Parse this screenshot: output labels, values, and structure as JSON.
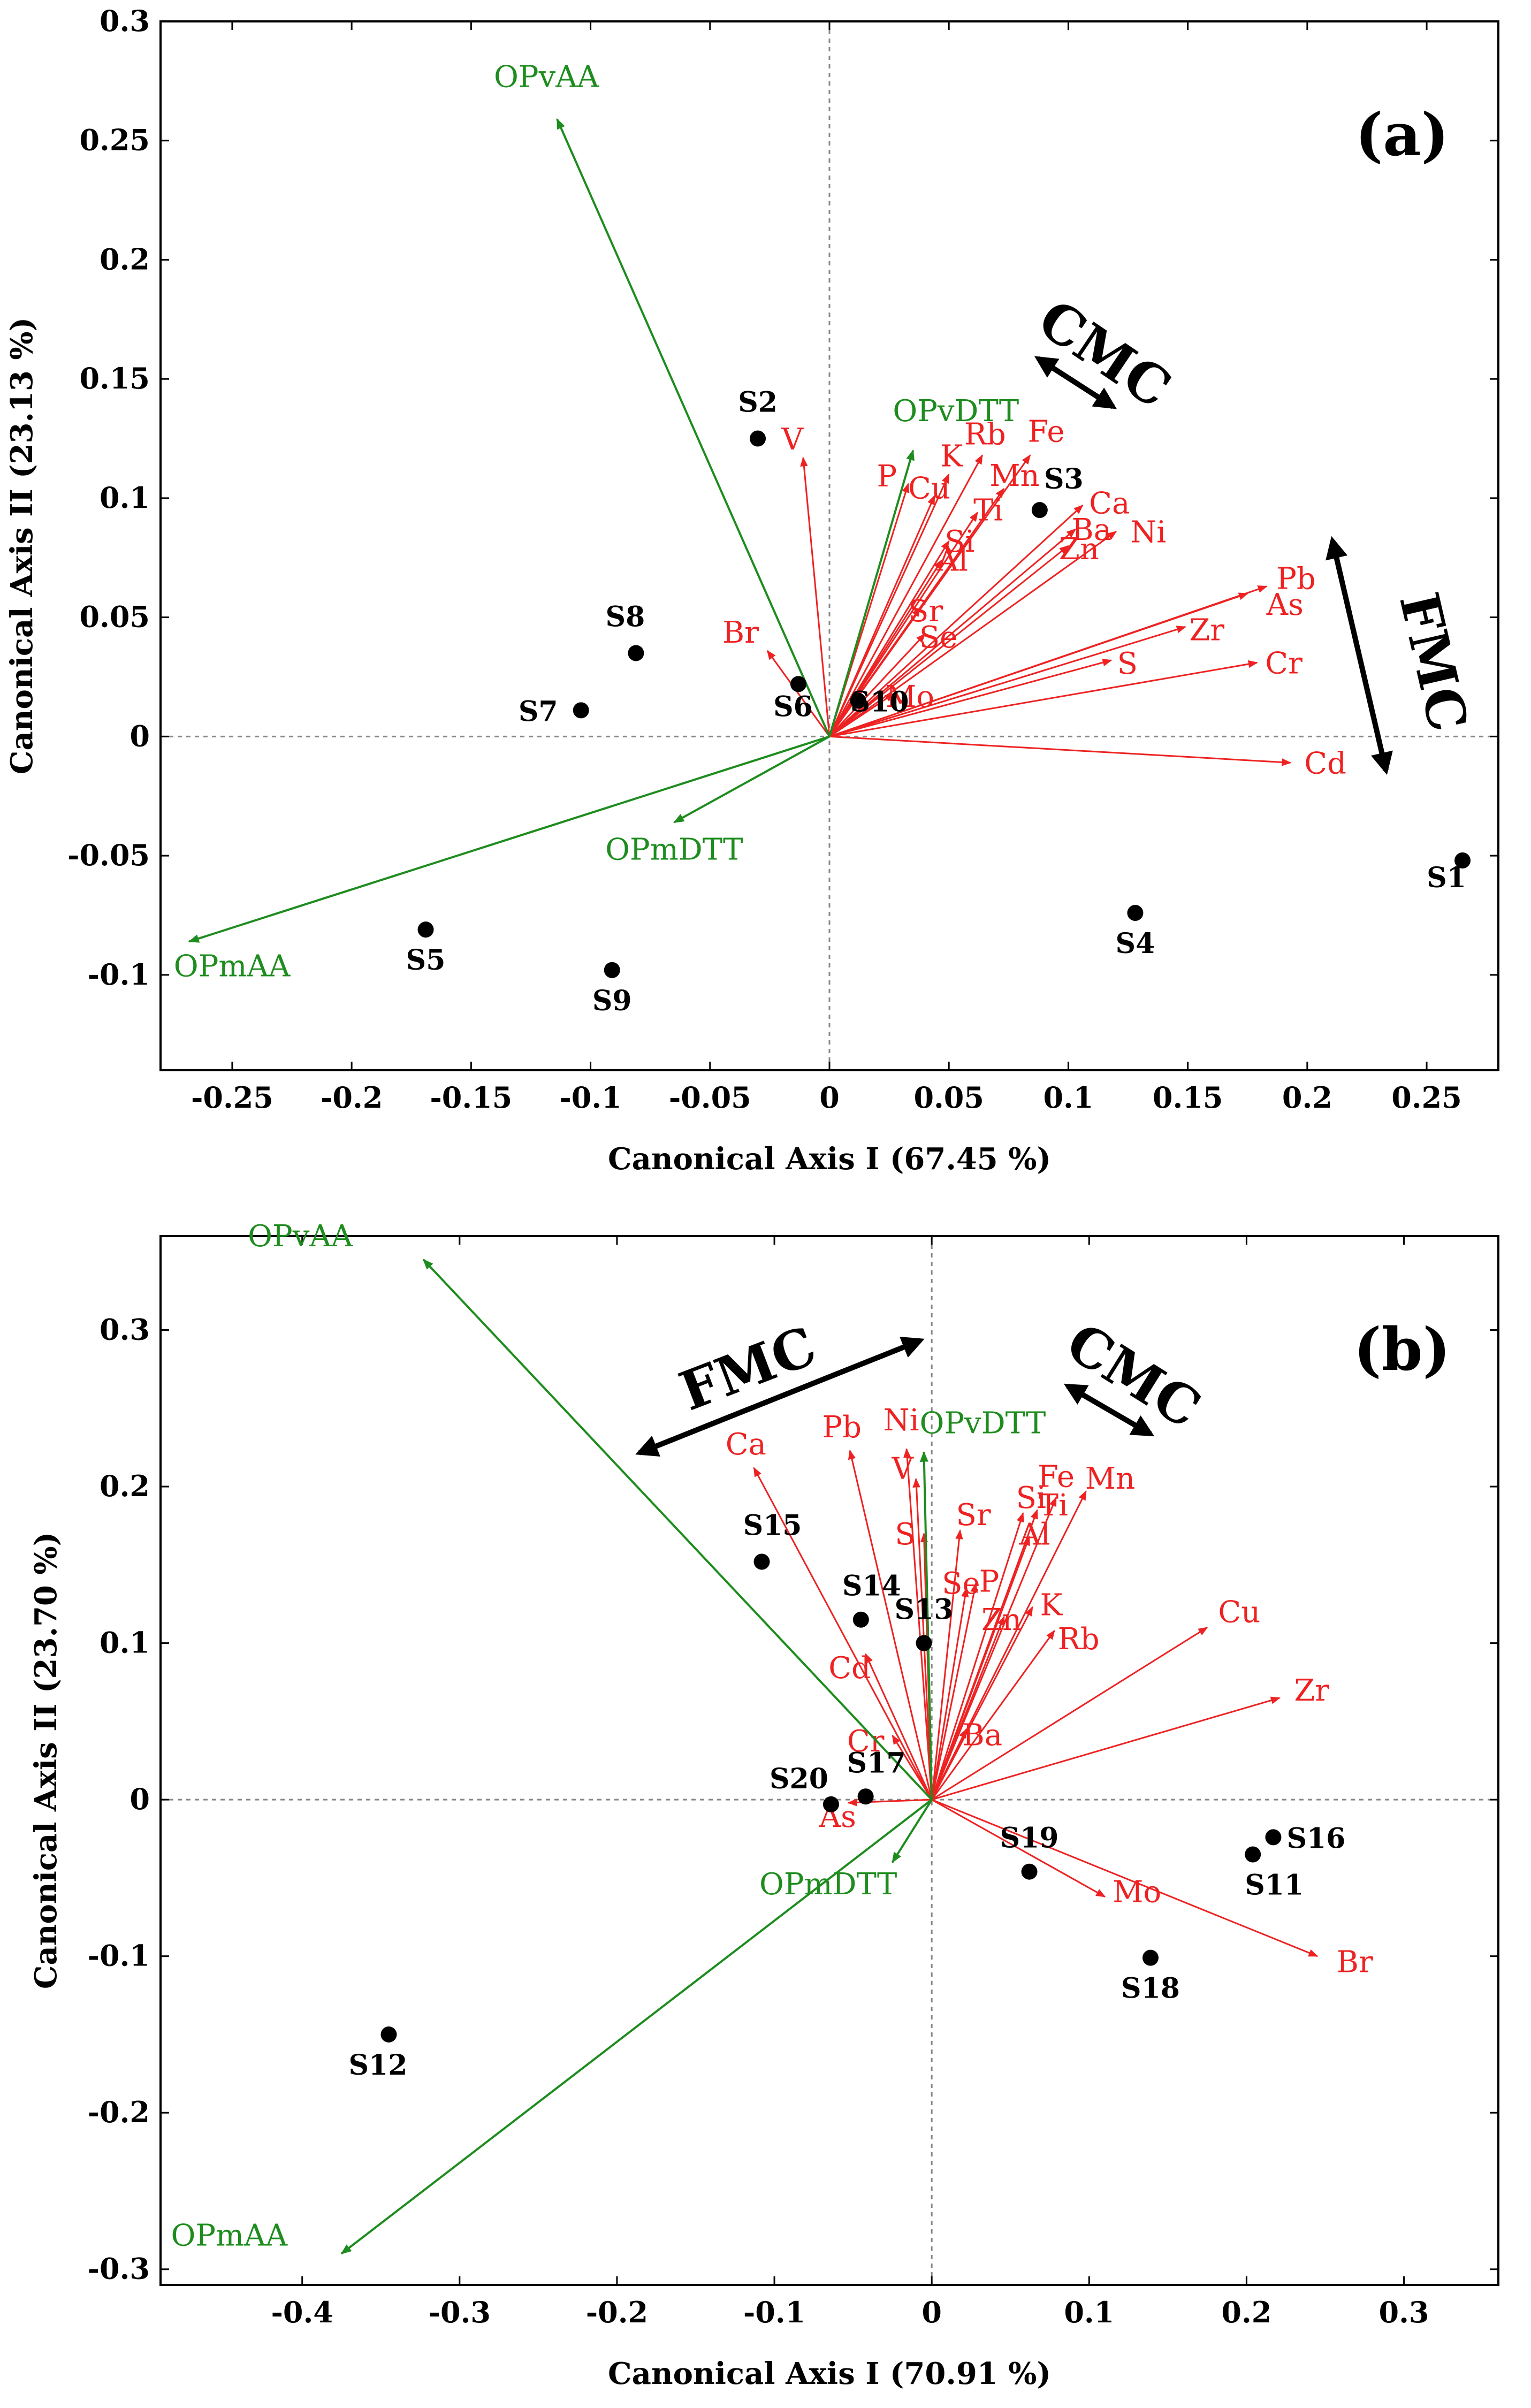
{
  "colors": {
    "element": "#ee2222",
    "op": "#1e8c1e",
    "point": "#000000",
    "annotation": "#000000"
  },
  "chart_data": [
    {
      "type": "scatter",
      "subtype": "canonical correspondence biplot",
      "panel_label": "(a)",
      "xlabel": "Canonical Axis I (67.45 %)",
      "ylabel": "Canonical Axis II (23.13 %)",
      "xlim": [
        -0.28,
        0.28
      ],
      "ylim": [
        -0.14,
        0.3
      ],
      "xticks": [
        "-0.25",
        "-0.2",
        "-0.15",
        "-0.1",
        "-0.05",
        "0",
        "0.05",
        "0.1",
        "0.15",
        "0.2",
        "0.25"
      ],
      "xtick_values": [
        -0.25,
        -0.2,
        -0.15,
        -0.1,
        -0.05,
        0,
        0.05,
        0.1,
        0.15,
        0.2,
        0.25
      ],
      "yticks": [
        "-0.1",
        "-0.05",
        "0",
        "0.05",
        "0.1",
        "0.15",
        "0.2",
        "0.25",
        "0.3"
      ],
      "ytick_values": [
        -0.1,
        -0.05,
        0,
        0.05,
        0.1,
        0.15,
        0.2,
        0.25,
        0.3
      ],
      "sites": [
        {
          "name": "S1",
          "x": 0.265,
          "y": -0.052
        },
        {
          "name": "S2",
          "x": -0.03,
          "y": 0.125
        },
        {
          "name": "S3",
          "x": 0.088,
          "y": 0.095
        },
        {
          "name": "S4",
          "x": 0.128,
          "y": -0.074
        },
        {
          "name": "S5",
          "x": -0.169,
          "y": -0.081
        },
        {
          "name": "S6",
          "x": -0.013,
          "y": 0.022
        },
        {
          "name": "S7",
          "x": -0.104,
          "y": 0.011
        },
        {
          "name": "S8",
          "x": -0.081,
          "y": 0.035
        },
        {
          "name": "S9",
          "x": -0.091,
          "y": -0.098
        },
        {
          "name": "S10",
          "x": 0.012,
          "y": 0.015
        }
      ],
      "element_vectors": [
        {
          "name": "V",
          "x": -0.011,
          "y": 0.117
        },
        {
          "name": "P",
          "x": 0.033,
          "y": 0.106
        },
        {
          "name": "Cu",
          "x": 0.044,
          "y": 0.101
        },
        {
          "name": "K",
          "x": 0.05,
          "y": 0.11
        },
        {
          "name": "Rb",
          "x": 0.064,
          "y": 0.118
        },
        {
          "name": "Fe",
          "x": 0.084,
          "y": 0.118
        },
        {
          "name": "Mn",
          "x": 0.073,
          "y": 0.104
        },
        {
          "name": "Ti",
          "x": 0.062,
          "y": 0.094
        },
        {
          "name": "Si",
          "x": 0.05,
          "y": 0.082
        },
        {
          "name": "Al",
          "x": 0.047,
          "y": 0.074
        },
        {
          "name": "Sr",
          "x": 0.038,
          "y": 0.054
        },
        {
          "name": "Se",
          "x": 0.04,
          "y": 0.043
        },
        {
          "name": "Ca",
          "x": 0.106,
          "y": 0.097
        },
        {
          "name": "Ba",
          "x": 0.103,
          "y": 0.087
        },
        {
          "name": "Zn",
          "x": 0.1,
          "y": 0.08
        },
        {
          "name": "Ni",
          "x": 0.12,
          "y": 0.086
        },
        {
          "name": "Br",
          "x": -0.026,
          "y": 0.036
        },
        {
          "name": "Mo",
          "x": 0.027,
          "y": 0.018
        },
        {
          "name": "S",
          "x": 0.118,
          "y": 0.032
        },
        {
          "name": "Zr",
          "x": 0.149,
          "y": 0.046
        },
        {
          "name": "Pb",
          "x": 0.183,
          "y": 0.063
        },
        {
          "name": "As",
          "x": 0.175,
          "y": 0.06
        },
        {
          "name": "Cr",
          "x": 0.179,
          "y": 0.031
        },
        {
          "name": "Cd",
          "x": 0.193,
          "y": -0.011
        }
      ],
      "op_vectors": [
        {
          "name": "OPvAA",
          "x": -0.114,
          "y": 0.259
        },
        {
          "name": "OPvDTT",
          "x": 0.035,
          "y": 0.12
        },
        {
          "name": "OPmDTT",
          "x": -0.065,
          "y": -0.036
        },
        {
          "name": "OPmAA",
          "x": -0.268,
          "y": -0.086
        }
      ],
      "annotations": [
        "CMC",
        "FMC"
      ]
    },
    {
      "type": "scatter",
      "subtype": "canonical correspondence biplot",
      "panel_label": "(b)",
      "xlabel": "Canonical Axis I (70.91 %)",
      "ylabel": "Canonical Axis II (23.70 %)",
      "xlim": [
        -0.49,
        0.36
      ],
      "ylim": [
        -0.31,
        0.36
      ],
      "xticks": [
        "-0.4",
        "-0.3",
        "-0.2",
        "-0.1",
        "0",
        "0.1",
        "0.2",
        "0.3"
      ],
      "xtick_values": [
        -0.4,
        -0.3,
        -0.2,
        -0.1,
        0,
        0.1,
        0.2,
        0.3
      ],
      "yticks": [
        "-0.3",
        "-0.2",
        "-0.1",
        "0",
        "0.1",
        "0.2",
        "0.3"
      ],
      "ytick_values": [
        -0.3,
        -0.2,
        -0.1,
        0,
        0.1,
        0.2,
        0.3
      ],
      "sites": [
        {
          "name": "S11",
          "x": 0.204,
          "y": -0.035
        },
        {
          "name": "S12",
          "x": -0.345,
          "y": -0.15
        },
        {
          "name": "S13",
          "x": -0.005,
          "y": 0.1
        },
        {
          "name": "S14",
          "x": -0.045,
          "y": 0.115
        },
        {
          "name": "S15",
          "x": -0.108,
          "y": 0.152
        },
        {
          "name": "S16",
          "x": 0.217,
          "y": -0.024
        },
        {
          "name": "S17",
          "x": -0.042,
          "y": 0.002
        },
        {
          "name": "S18",
          "x": 0.139,
          "y": -0.101
        },
        {
          "name": "S19",
          "x": 0.062,
          "y": -0.046
        },
        {
          "name": "S20",
          "x": -0.064,
          "y": -0.003
        }
      ],
      "element_vectors": [
        {
          "name": "Ca",
          "x": -0.113,
          "y": 0.212
        },
        {
          "name": "Pb",
          "x": -0.052,
          "y": 0.223
        },
        {
          "name": "Ni",
          "x": -0.016,
          "y": 0.224
        },
        {
          "name": "V",
          "x": -0.01,
          "y": 0.205
        },
        {
          "name": "S",
          "x": -0.005,
          "y": 0.17
        },
        {
          "name": "Sr",
          "x": 0.018,
          "y": 0.172
        },
        {
          "name": "Se",
          "x": 0.022,
          "y": 0.135
        },
        {
          "name": "P",
          "x": 0.028,
          "y": 0.138
        },
        {
          "name": "Si",
          "x": 0.058,
          "y": 0.183
        },
        {
          "name": "Fe",
          "x": 0.079,
          "y": 0.193
        },
        {
          "name": "Ti",
          "x": 0.067,
          "y": 0.185
        },
        {
          "name": "Mn",
          "x": 0.098,
          "y": 0.197
        },
        {
          "name": "Al",
          "x": 0.062,
          "y": 0.168
        },
        {
          "name": "Zn",
          "x": 0.046,
          "y": 0.117
        },
        {
          "name": "K",
          "x": 0.064,
          "y": 0.123
        },
        {
          "name": "Rb",
          "x": 0.078,
          "y": 0.108
        },
        {
          "name": "Cd",
          "x": -0.042,
          "y": 0.093
        },
        {
          "name": "Cr",
          "x": -0.025,
          "y": 0.041
        },
        {
          "name": "Ba",
          "x": 0.022,
          "y": 0.045
        },
        {
          "name": "Cu",
          "x": 0.175,
          "y": 0.11
        },
        {
          "name": "Zr",
          "x": 0.221,
          "y": 0.065
        },
        {
          "name": "As",
          "x": -0.053,
          "y": -0.002
        },
        {
          "name": "Mo",
          "x": 0.11,
          "y": -0.062
        },
        {
          "name": "Br",
          "x": 0.245,
          "y": -0.1
        }
      ],
      "op_vectors": [
        {
          "name": "OPvAA",
          "x": -0.323,
          "y": 0.345
        },
        {
          "name": "OPvDTT",
          "x": -0.005,
          "y": 0.222
        },
        {
          "name": "OPmDTT",
          "x": -0.025,
          "y": -0.04
        },
        {
          "name": "OPmAA",
          "x": -0.375,
          "y": -0.29
        }
      ],
      "annotations": [
        "FMC",
        "CMC"
      ]
    }
  ]
}
